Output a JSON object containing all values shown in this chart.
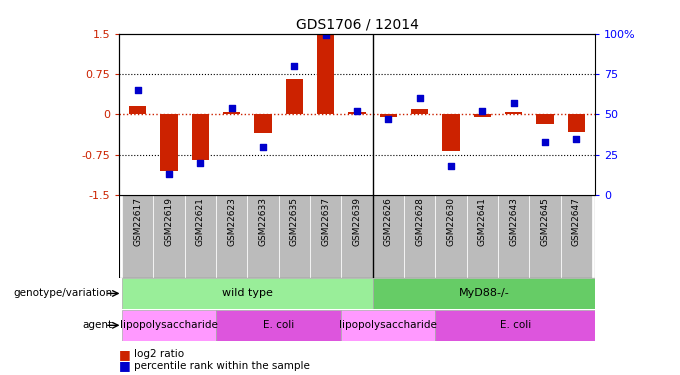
{
  "title": "GDS1706 / 12014",
  "samples": [
    "GSM22617",
    "GSM22619",
    "GSM22621",
    "GSM22623",
    "GSM22633",
    "GSM22635",
    "GSM22637",
    "GSM22639",
    "GSM22626",
    "GSM22628",
    "GSM22630",
    "GSM22641",
    "GSM22643",
    "GSM22645",
    "GSM22647"
  ],
  "log2_ratio": [
    0.15,
    -1.05,
    -0.85,
    0.05,
    -0.35,
    0.65,
    1.5,
    0.05,
    -0.05,
    0.1,
    -0.68,
    -0.05,
    0.05,
    -0.18,
    -0.32
  ],
  "percentile": [
    65,
    13,
    20,
    54,
    30,
    80,
    99,
    52,
    47,
    60,
    18,
    52,
    57,
    33,
    35
  ],
  "ylim": [
    -1.5,
    1.5
  ],
  "yticks": [
    -1.5,
    -0.75,
    0,
    0.75,
    1.5
  ],
  "ytick_labels": [
    "-1.5",
    "-0.75",
    "0",
    "0.75",
    "1.5"
  ],
  "right_yticks": [
    0,
    25,
    50,
    75,
    100
  ],
  "right_ytick_labels": [
    "0",
    "25",
    "50",
    "75",
    "100%"
  ],
  "bar_color": "#CC2200",
  "dot_color": "#0000CC",
  "hline_color": "#CC2200",
  "grid_color": "black",
  "genotype_wild": "wild type",
  "genotype_myD": "MyD88-/-",
  "agent_lps1": "lipopolysaccharide",
  "agent_ecoli1": "E. coli",
  "agent_lps2": "lipopolysaccharide",
  "agent_ecoli2": "E. coli",
  "lps1_count": 3,
  "ecoli1_count": 4,
  "lps2_count": 3,
  "ecoli2_count": 5,
  "color_wild": "#99EE99",
  "color_myD": "#66CC66",
  "color_lps": "#FF99FF",
  "color_ecoli": "#DD55DD",
  "color_sample_bg": "#BBBBBB",
  "separator_after": 8,
  "n_samples": 15
}
